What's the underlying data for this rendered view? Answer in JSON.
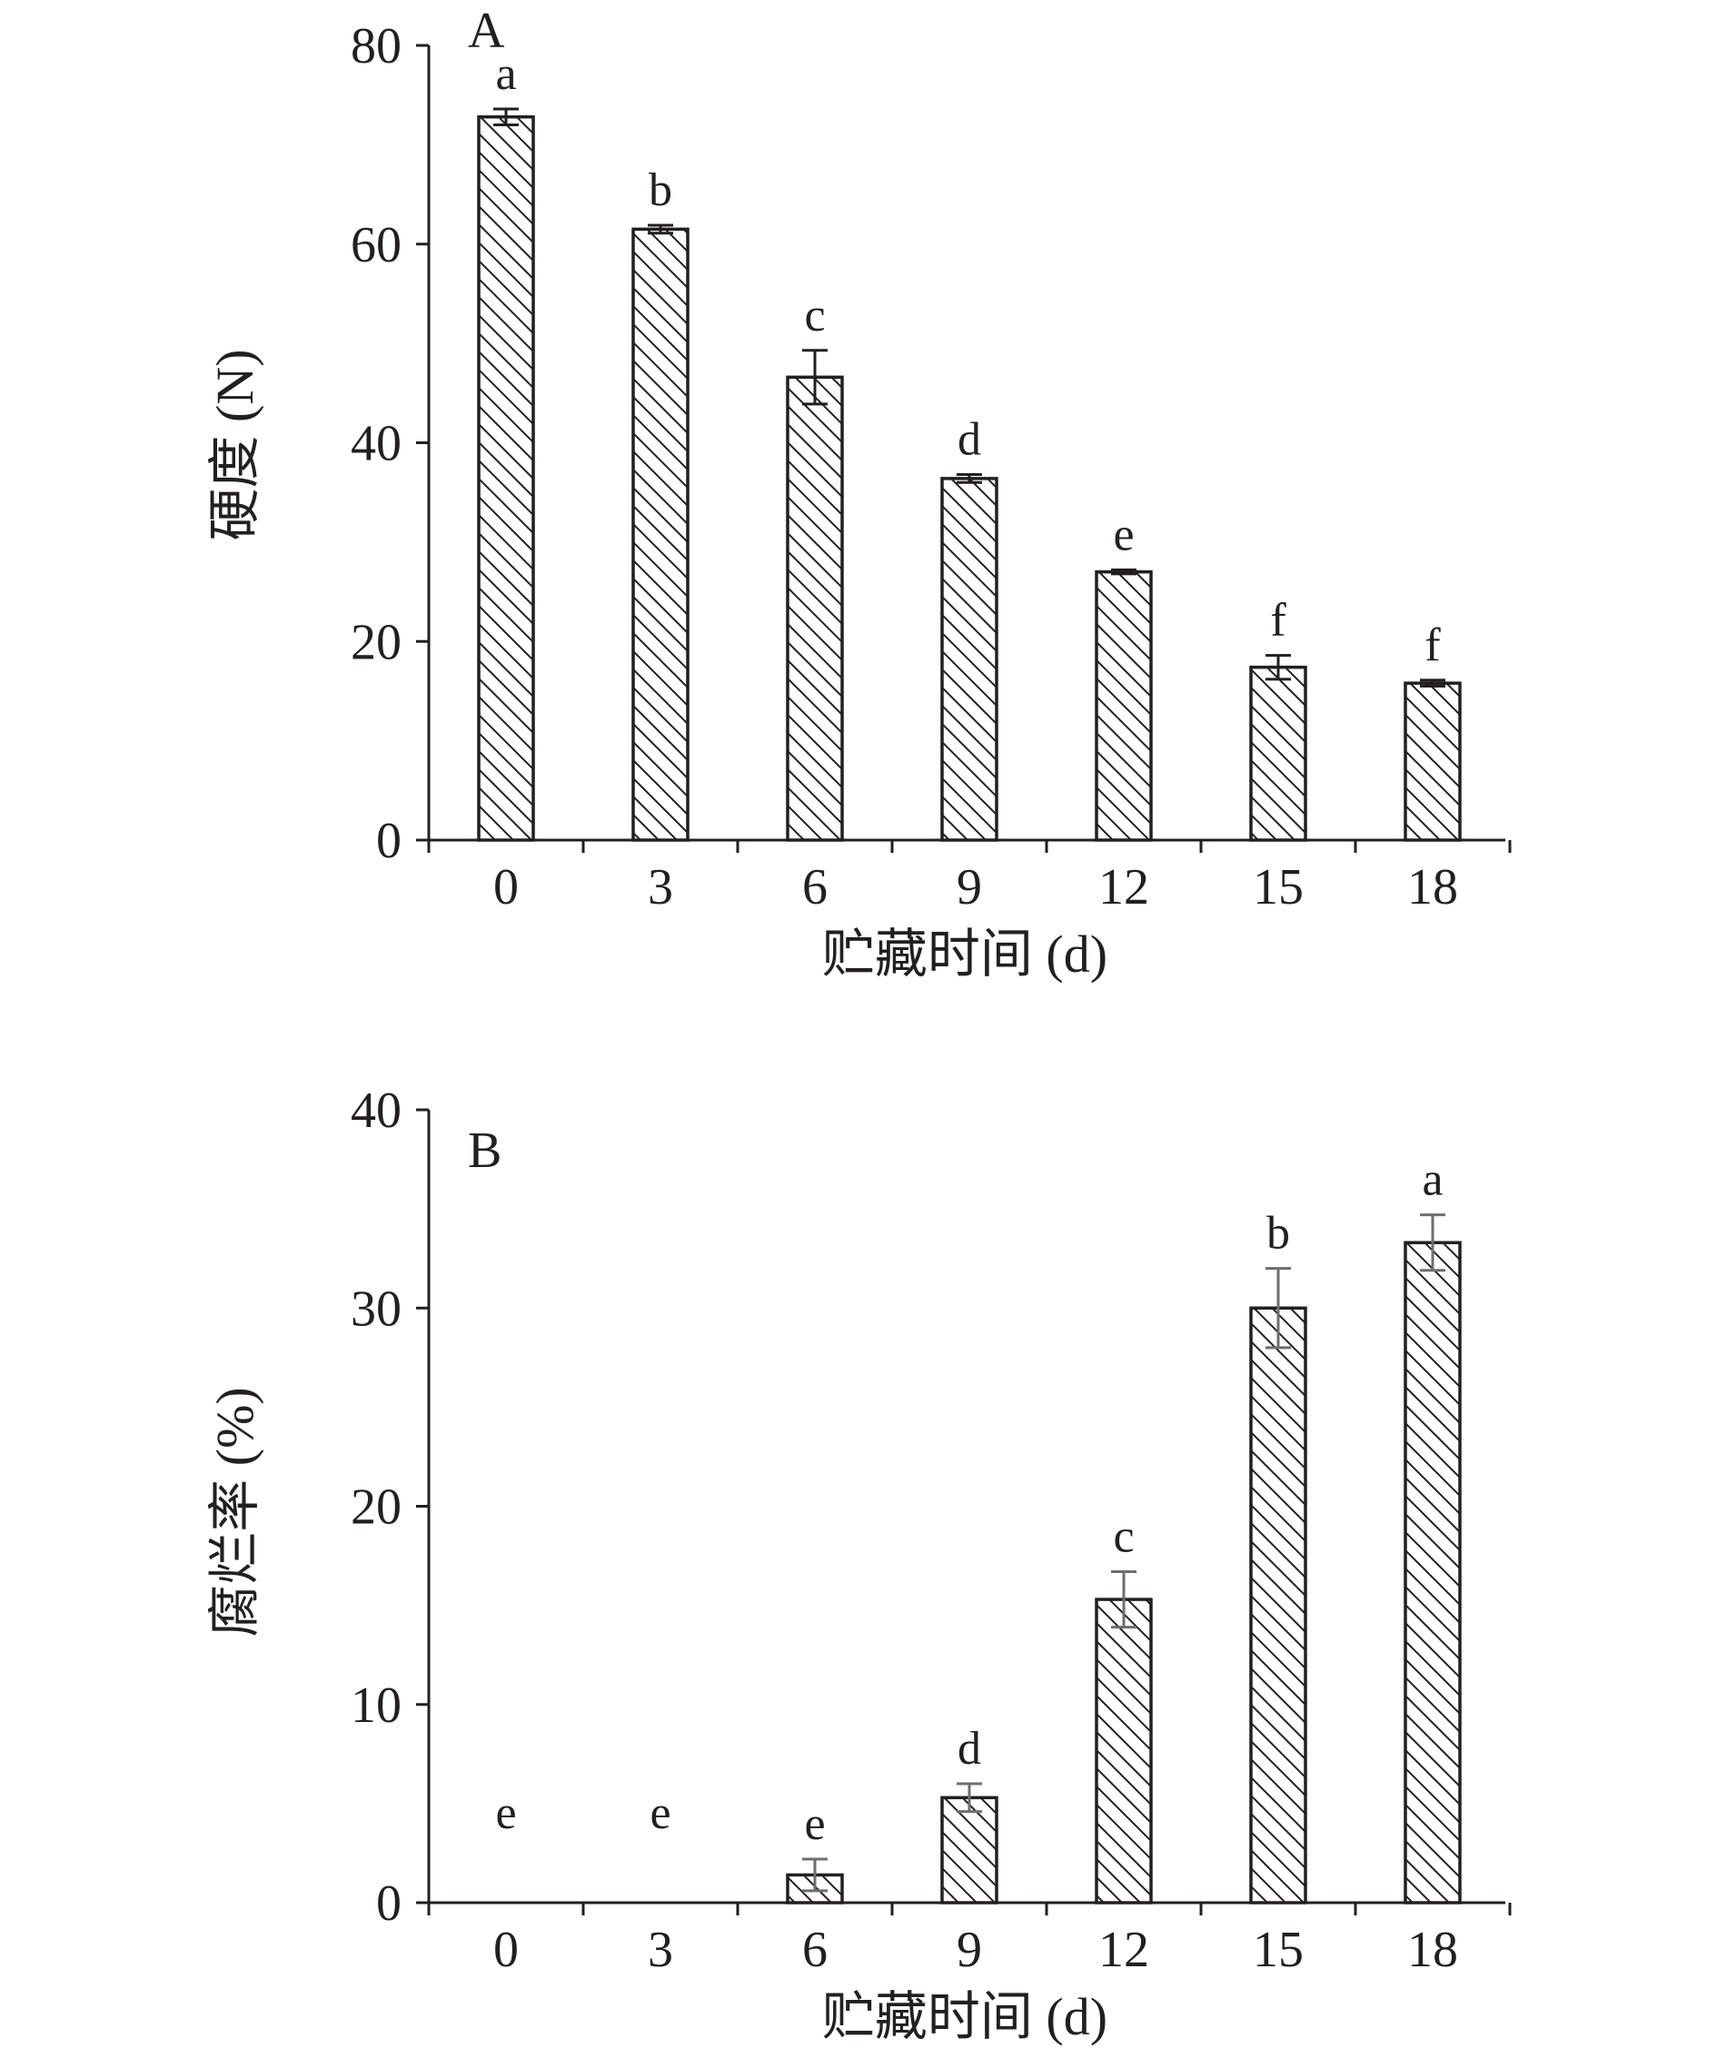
{
  "chart_data": [
    {
      "type": "bar",
      "panel_label": "A",
      "xlabel": "贮藏时间 (d)",
      "ylabel": "硬度 (N)",
      "categories": [
        "0",
        "3",
        "6",
        "9",
        "12",
        "15",
        "18"
      ],
      "values": [
        72.8,
        61.5,
        46.6,
        36.4,
        27.0,
        17.4,
        15.8
      ],
      "errors": [
        0.8,
        0.4,
        2.7,
        0.4,
        0.2,
        1.2,
        0.3
      ],
      "significance": [
        "a",
        "b",
        "c",
        "d",
        "e",
        "f",
        "f"
      ],
      "ylim": [
        0,
        80
      ],
      "yticks": [
        "0",
        "20",
        "40",
        "60",
        "80"
      ],
      "bar_fill": "diagonal-hatch",
      "grid": false
    },
    {
      "type": "bar",
      "panel_label": "B",
      "xlabel": "贮藏时间 (d)",
      "ylabel": "腐烂率 (%)",
      "categories": [
        "0",
        "3",
        "6",
        "9",
        "12",
        "15",
        "18"
      ],
      "values": [
        0,
        0,
        1.4,
        5.3,
        15.3,
        30.0,
        33.3
      ],
      "errors": [
        0,
        0,
        0.8,
        0.7,
        1.4,
        2.0,
        1.4
      ],
      "significance": [
        "e",
        "e",
        "e",
        "d",
        "c",
        "b",
        "a"
      ],
      "ylim": [
        0,
        40
      ],
      "yticks": [
        "0",
        "10",
        "20",
        "30",
        "40"
      ],
      "bar_fill": "diagonal-hatch",
      "grid": false
    }
  ],
  "colors": {
    "ink": "#231f20",
    "error_bar_panel_a": "#231f20",
    "error_bar_panel_b": "#6d6e71"
  }
}
